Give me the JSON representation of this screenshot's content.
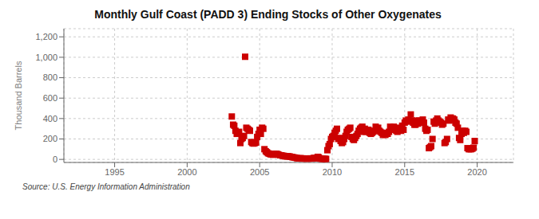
{
  "chart_data": {
    "type": "scatter",
    "title": "Monthly Gulf Coast (PADD 3) Ending Stocks of Other Oxygenates",
    "ylabel": "Thousand Barrels",
    "annotations": [
      "Source: U.S. Energy Information Administration"
    ],
    "color": "#cc0000",
    "marker": "square",
    "grid": true,
    "xlim": [
      1991.5,
      2022.5
    ],
    "ylim": [
      -30,
      1280
    ],
    "xticks": [
      1995,
      2000,
      2005,
      2010,
      2015,
      2020
    ],
    "yticks": [
      0,
      200,
      400,
      600,
      800,
      {
        "value": 1000,
        "label": "1,000"
      },
      {
        "value": 1200,
        "label": "1,200"
      }
    ],
    "x": [
      2003.08,
      2003.17,
      2003.25,
      2003.33,
      2003.42,
      2003.5,
      2003.58,
      2003.67,
      2003.75,
      2003.83,
      2003.92,
      2004.0,
      2004.08,
      2004.17,
      2004.25,
      2004.33,
      2004.42,
      2004.5,
      2004.58,
      2004.67,
      2004.75,
      2004.83,
      2004.92,
      2005.0,
      2005.08,
      2005.17,
      2005.25,
      2005.33,
      2005.42,
      2005.5,
      2005.58,
      2005.67,
      2005.75,
      2005.83,
      2005.92,
      2006.0,
      2006.08,
      2006.17,
      2006.25,
      2006.33,
      2006.42,
      2006.5,
      2006.58,
      2006.67,
      2006.75,
      2006.83,
      2006.92,
      2007.0,
      2007.08,
      2007.17,
      2007.25,
      2007.33,
      2007.42,
      2007.5,
      2007.58,
      2007.67,
      2007.75,
      2007.83,
      2007.92,
      2008.0,
      2008.08,
      2008.17,
      2008.25,
      2008.33,
      2008.42,
      2008.5,
      2008.58,
      2008.67,
      2008.75,
      2008.83,
      2008.92,
      2009.0,
      2009.08,
      2009.17,
      2009.25,
      2009.33,
      2009.42,
      2009.5,
      2009.58,
      2009.67,
      2009.75,
      2009.83,
      2009.92,
      2010.0,
      2010.08,
      2010.17,
      2010.25,
      2010.33,
      2010.42,
      2010.5,
      2010.58,
      2010.67,
      2010.75,
      2010.83,
      2010.92,
      2011.0,
      2011.08,
      2011.17,
      2011.25,
      2011.33,
      2011.42,
      2011.5,
      2011.58,
      2011.67,
      2011.75,
      2011.83,
      2011.92,
      2012.0,
      2012.08,
      2012.17,
      2012.25,
      2012.33,
      2012.42,
      2012.5,
      2012.58,
      2012.67,
      2012.75,
      2012.83,
      2012.92,
      2013.0,
      2013.08,
      2013.17,
      2013.25,
      2013.33,
      2013.42,
      2013.5,
      2013.58,
      2013.67,
      2013.75,
      2013.83,
      2013.92,
      2014.0,
      2014.08,
      2014.17,
      2014.25,
      2014.33,
      2014.42,
      2014.5,
      2014.58,
      2014.67,
      2014.75,
      2014.83,
      2014.92,
      2015.0,
      2015.08,
      2015.17,
      2015.25,
      2015.33,
      2015.42,
      2015.5,
      2015.58,
      2015.67,
      2015.75,
      2015.83,
      2015.92,
      2016.0,
      2016.08,
      2016.17,
      2016.25,
      2016.33,
      2016.42,
      2016.5,
      2016.58,
      2016.67,
      2016.75,
      2016.83,
      2016.92,
      2017.0,
      2017.08,
      2017.17,
      2017.25,
      2017.33,
      2017.42,
      2017.5,
      2017.58,
      2017.67,
      2017.75,
      2017.83,
      2017.92,
      2018.0,
      2018.08,
      2018.17,
      2018.25,
      2018.33,
      2018.42,
      2018.5,
      2018.58,
      2018.67,
      2018.75,
      2018.83,
      2018.92,
      2019.0,
      2019.08,
      2019.17,
      2019.25,
      2019.33,
      2019.42,
      2019.5,
      2019.58,
      2019.67,
      2019.75,
      2019.83
    ],
    "values": [
      420,
      340,
      330,
      280,
      250,
      260,
      270,
      160,
      200,
      210,
      230,
      1005,
      310,
      300,
      290,
      280,
      170,
      160,
      155,
      160,
      165,
      220,
      250,
      290,
      250,
      310,
      300,
      100,
      80,
      70,
      60,
      55,
      50,
      50,
      45,
      55,
      50,
      55,
      50,
      45,
      40,
      40,
      35,
      35,
      30,
      30,
      30,
      30,
      28,
      25,
      22,
      20,
      18,
      15,
      12,
      10,
      10,
      12,
      8,
      10,
      8,
      8,
      8,
      8,
      8,
      10,
      8,
      10,
      15,
      12,
      10,
      25,
      20,
      8,
      8,
      5,
      5,
      5,
      5,
      90,
      130,
      150,
      200,
      220,
      230,
      260,
      280,
      300,
      200,
      210,
      180,
      160,
      170,
      200,
      230,
      270,
      290,
      300,
      310,
      220,
      200,
      190,
      210,
      230,
      250,
      280,
      300,
      310,
      320,
      270,
      300,
      270,
      280,
      290,
      260,
      250,
      260,
      270,
      280,
      320,
      300,
      310,
      280,
      270,
      260,
      240,
      250,
      240,
      260,
      250,
      270,
      320,
      310,
      300,
      320,
      290,
      280,
      270,
      300,
      310,
      280,
      330,
      290,
      360,
      380,
      370,
      390,
      380,
      440,
      380,
      360,
      340,
      340,
      380,
      350,
      380,
      360,
      370,
      390,
      360,
      300,
      280,
      290,
      110,
      120,
      130,
      200,
      370,
      350,
      380,
      400,
      380,
      370,
      360,
      340,
      350,
      160,
      170,
      200,
      390,
      380,
      410,
      400,
      400,
      390,
      360,
      350,
      310,
      210,
      190,
      250,
      280,
      260,
      280,
      270,
      110,
      100,
      100,
      100,
      105,
      115,
      180
    ]
  }
}
